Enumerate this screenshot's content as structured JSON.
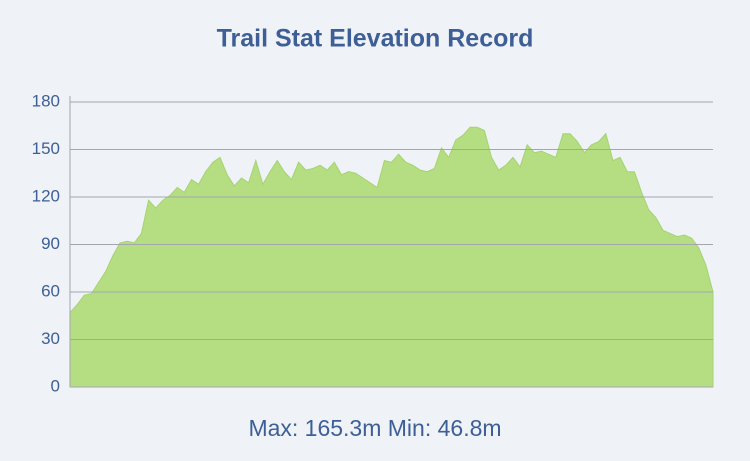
{
  "chart_data": {
    "type": "area",
    "title": "Trail Stat Elevation Record",
    "footer": "Max: 165.3m Min: 46.8m",
    "values": [
      47,
      52,
      58,
      59,
      66,
      73,
      83,
      91,
      92,
      91,
      97,
      118,
      113,
      118,
      121,
      126,
      123,
      131,
      128,
      136,
      142,
      145,
      134,
      127,
      132,
      129,
      143,
      128,
      136,
      143,
      136,
      131,
      142,
      137,
      138,
      140,
      137,
      142,
      134,
      136,
      135,
      132,
      129,
      126,
      143,
      142,
      147,
      142,
      140,
      137,
      136,
      138,
      151,
      145,
      156,
      159,
      164,
      164,
      162,
      145,
      137,
      140,
      145,
      139,
      153,
      148,
      149,
      147,
      145,
      160,
      160,
      155,
      148,
      153,
      155,
      160,
      143,
      145,
      136,
      136,
      123,
      112,
      107,
      99,
      97,
      95,
      96,
      94,
      88,
      77,
      60
    ],
    "color": "#b5de82",
    "ylim": [
      0,
      180
    ],
    "yticks": [
      0,
      30,
      60,
      90,
      120,
      150,
      180
    ],
    "grid": true
  }
}
